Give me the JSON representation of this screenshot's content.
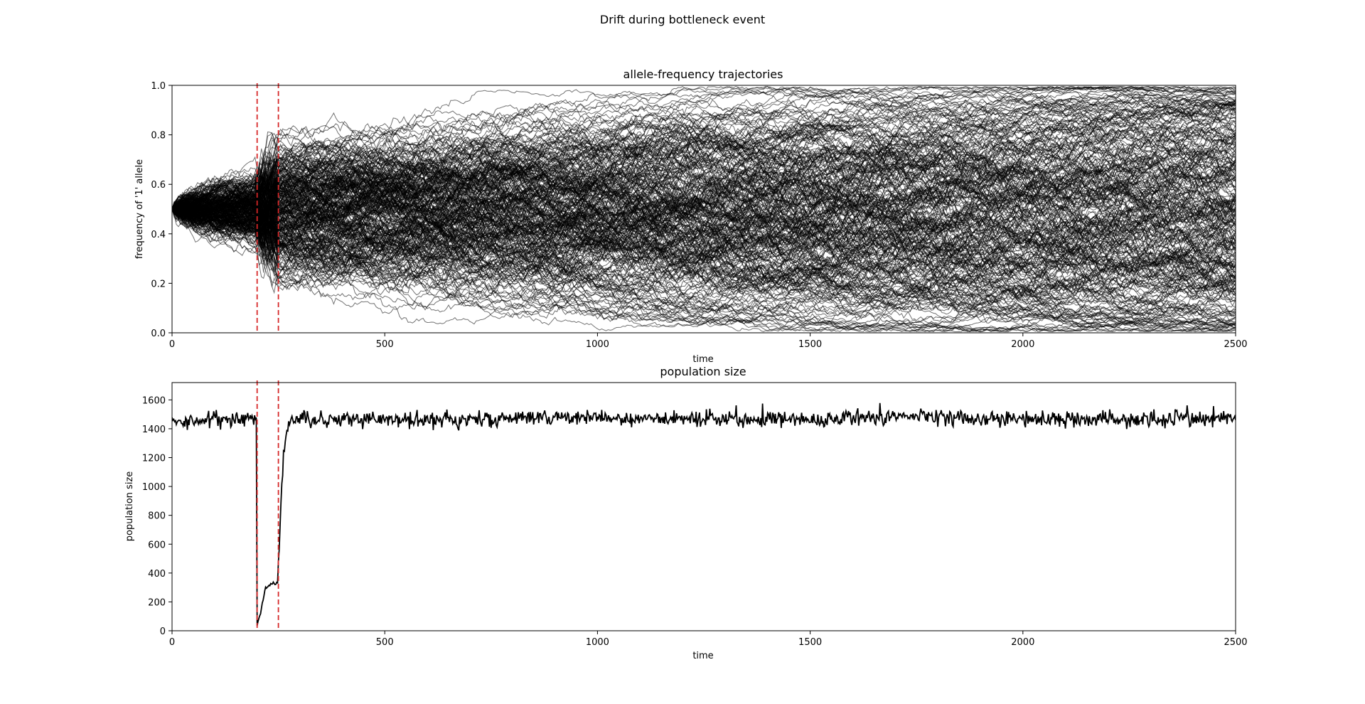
{
  "figure": {
    "suptitle": "Drift during bottleneck event"
  },
  "colors": {
    "trajectory": "#000000",
    "population_line": "#000000",
    "bottleneck_marker": "#d62728",
    "background": "#ffffff"
  },
  "chart_data": [
    {
      "type": "line",
      "title": "allele-frequency trajectories",
      "xlabel": "time",
      "ylabel": "frequency of '1' allele",
      "xlim": [
        0,
        2500
      ],
      "ylim": [
        0,
        1.0
      ],
      "xticks": [
        "0",
        "500",
        "1000",
        "1500",
        "2000",
        "2500"
      ],
      "yticks": [
        "0.0",
        "0.2",
        "0.4",
        "0.6",
        "0.8",
        "1.0"
      ],
      "grid": false,
      "legend": "none",
      "description_of_series": "many simulated replicate trajectories starting at frequency 0.5",
      "series_count": 300,
      "start_value": 0.5,
      "bottleneck_start": 200,
      "bottleneck_end": 250,
      "vlines": [
        200,
        250
      ]
    },
    {
      "type": "line",
      "title": "population size",
      "xlabel": "time",
      "ylabel": "population size",
      "xlim": [
        0,
        2500
      ],
      "ylim": [
        0,
        1720
      ],
      "xticks": [
        "0",
        "500",
        "1000",
        "1500",
        "2000",
        "2500"
      ],
      "yticks": [
        "0",
        "200",
        "400",
        "600",
        "800",
        "1000",
        "1200",
        "1400",
        "1600"
      ],
      "grid": false,
      "legend": "none",
      "vlines": [
        200,
        250
      ],
      "series": [
        {
          "x": [
            0,
            50,
            100,
            150,
            199,
            200,
            205,
            210,
            220,
            230,
            240,
            248,
            252,
            258,
            264,
            270,
            280,
            300,
            400,
            500,
            700,
            1000,
            1250,
            1500,
            1700,
            1750,
            2000,
            2250,
            2500
          ],
          "values": [
            1460,
            1440,
            1470,
            1465,
            1470,
            40,
            80,
            160,
            300,
            320,
            320,
            340,
            600,
            1000,
            1300,
            1420,
            1460,
            1465,
            1470,
            1465,
            1470,
            1480,
            1470,
            1460,
            1490,
            1480,
            1470,
            1460,
            1480
          ]
        }
      ]
    }
  ]
}
